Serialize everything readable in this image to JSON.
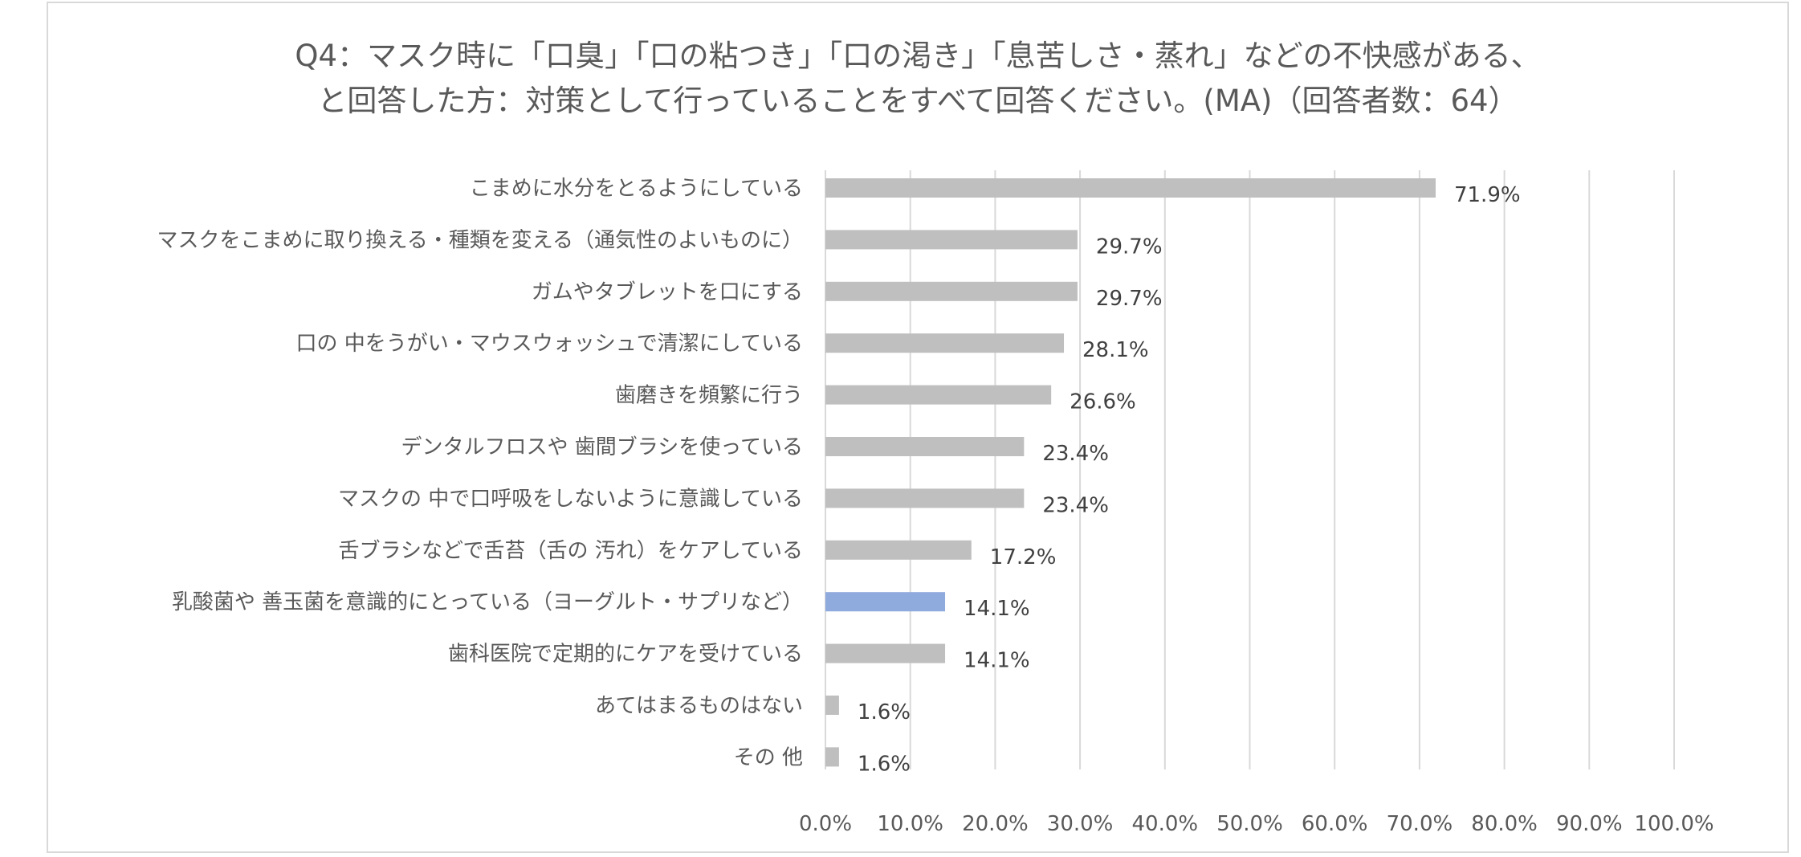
{
  "chart_data": {
    "type": "bar",
    "orientation": "horizontal",
    "title_lines": [
      "Q4：マスク時に「口臭」「口の粘つき」「口の渇き」「息苦しさ・蒸れ」などの不快感がある、",
      "と回答した方：対策として行っていることをすべて回答ください。(MA)（回答者数：64）"
    ],
    "categories": [
      "こまめに水分をとるようにしている",
      "マスクをこまめに取り換える・種類を変える（通気性のよいものに）",
      "ガムやタブレットを口にする",
      "口の 中をうがい・マウスウォッシュで清潔にしている",
      "歯磨きを頻繁に行う",
      "デンタルフロスや 歯間ブラシを使っている",
      "マスクの 中で口呼吸をしないように意識している",
      "舌ブラシなどで舌苔（舌の 汚れ）をケアしている",
      "乳酸菌や 善玉菌を意識的にとっている（ヨーグルト・サプリなど）",
      "歯科医院で定期的にケアを受けている",
      "あてはまるものはない",
      "その 他"
    ],
    "values": [
      71.9,
      29.7,
      29.7,
      28.1,
      26.6,
      23.4,
      23.4,
      17.2,
      14.1,
      14.1,
      1.6,
      1.6
    ],
    "value_labels": [
      "71.9%",
      "29.7%",
      "29.7%",
      "28.1%",
      "26.6%",
      "23.4%",
      "23.4%",
      "17.2%",
      "14.1%",
      "14.1%",
      "1.6%",
      "1.6%"
    ],
    "highlight_index": 8,
    "x_ticks": [
      "0.0%",
      "10.0%",
      "20.0%",
      "30.0%",
      "40.0%",
      "50.0%",
      "60.0%",
      "70.0%",
      "80.0%",
      "90.0%",
      "100.0%"
    ],
    "xlim": [
      0,
      100
    ],
    "grid": true,
    "colors": {
      "bar": "#bfbfbf",
      "highlight": "#8faadc",
      "grid": "#d9d9d9"
    }
  }
}
